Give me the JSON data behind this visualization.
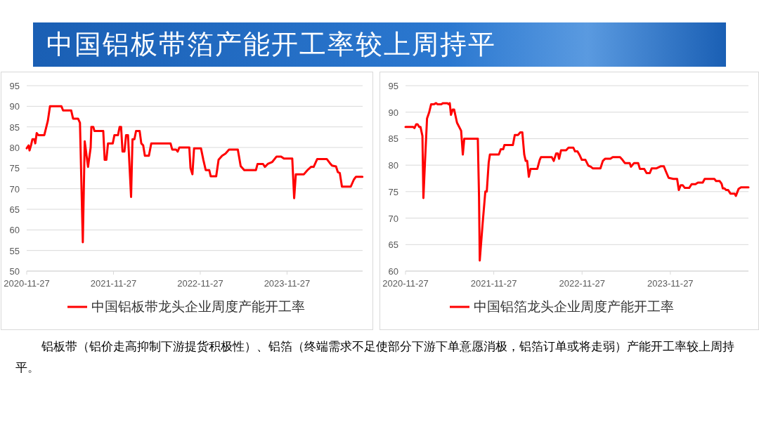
{
  "chart_data": [
    {
      "type": "line",
      "title": "中国铝板带箔产能开工率较上周持平",
      "annotations": [
        "铝板带（铝价走高抑制下游提货积极性）、铝箔（终端需求不足使部分下游下单意愿消极，铝箔订单或将走弱）产能开工率较上周持平。"
      ],
      "xlim": [
        "2020-11-27",
        "2024-10-10"
      ],
      "xticks": [
        {
          "value": "2020-11-27",
          "label": "2020-11-27"
        },
        {
          "value": "2021-11-27",
          "label": "2021-11-27"
        },
        {
          "value": "2022-11-27",
          "label": "2022-11-27"
        },
        {
          "value": "2023-11-27",
          "label": "2023-11-27"
        }
      ],
      "ylim": [
        50,
        95
      ],
      "yticks": [
        50,
        55,
        60,
        65,
        70,
        75,
        80,
        85,
        90,
        95
      ],
      "grid": "y",
      "legend": "bottom",
      "series": [
        {
          "name": "中国铝板带龙头企业周度产能开工率",
          "color": "#ff0000",
          "x": [
            "2020-11-27",
            "2020-12-05",
            "2020-12-09",
            "2020-12-15",
            "2020-12-21",
            "2020-12-29",
            "2021-01-02",
            "2021-01-08",
            "2021-01-15",
            "2021-02-09",
            "2021-02-24",
            "2021-03-05",
            "2021-04-22",
            "2021-04-29",
            "2021-06-02",
            "2021-06-10",
            "2021-07-01",
            "2021-07-09",
            "2021-07-21",
            "2021-07-29",
            "2021-08-12",
            "2021-08-23",
            "2021-08-26",
            "2021-09-03",
            "2021-09-08",
            "2021-10-15",
            "2021-10-21",
            "2021-10-28",
            "2021-11-04",
            "2021-11-24",
            "2021-12-01",
            "2021-12-16",
            "2021-12-23",
            "2021-12-29",
            "2022-01-04",
            "2022-01-12",
            "2022-01-19",
            "2022-01-27",
            "2022-02-09",
            "2022-02-15",
            "2022-02-23",
            "2022-03-02",
            "2022-03-17",
            "2022-03-24",
            "2022-04-01",
            "2022-04-08",
            "2022-04-25",
            "2022-05-05",
            "2022-07-25",
            "2022-08-01",
            "2022-08-17",
            "2022-08-24",
            "2022-08-31",
            "2022-10-12",
            "2022-10-17",
            "2022-10-25",
            "2022-11-01",
            "2022-11-30",
            "2022-12-10",
            "2022-12-20",
            "2023-01-04",
            "2023-01-10",
            "2023-02-02",
            "2023-02-12",
            "2023-02-27",
            "2023-03-13",
            "2023-03-28",
            "2023-05-04",
            "2023-05-16",
            "2023-05-31",
            "2023-07-19",
            "2023-07-26",
            "2023-08-18",
            "2023-08-26",
            "2023-09-07",
            "2023-09-26",
            "2023-10-14",
            "2023-11-02",
            "2023-11-14",
            "2023-12-19",
            "2023-12-27",
            "2024-01-03",
            "2024-02-06",
            "2024-02-21",
            "2024-03-07",
            "2024-03-18",
            "2024-04-02",
            "2024-05-12",
            "2024-05-24",
            "2024-06-03",
            "2024-06-20",
            "2024-06-28",
            "2024-07-06",
            "2024-07-15",
            "2024-08-21",
            "2024-09-03",
            "2024-09-12",
            "2024-10-09"
          ],
          "values": [
            79.8,
            80.5,
            79.3,
            80.5,
            82,
            82,
            81,
            83.5,
            83,
            83,
            86.5,
            90,
            90,
            89,
            89,
            87,
            87,
            86,
            57,
            81.5,
            75.3,
            80,
            85,
            85,
            84,
            84,
            77,
            77,
            81,
            81,
            83,
            83,
            85,
            85,
            79,
            79,
            83,
            83,
            68,
            82,
            82,
            84,
            84,
            81,
            80.5,
            78,
            78,
            81,
            81,
            79.5,
            79.5,
            79,
            80,
            80,
            75,
            73.5,
            79.8,
            79.8,
            77,
            74.5,
            74.5,
            73,
            73,
            77,
            78,
            78.5,
            79.5,
            79.5,
            75.5,
            74.5,
            74.5,
            76,
            76,
            75.3,
            76,
            76.5,
            77.8,
            77.8,
            77.3,
            77.3,
            67.7,
            73.5,
            73.5,
            74.5,
            75.3,
            75.3,
            77.2,
            77.2,
            76.3,
            75.6,
            75.4,
            74,
            73.8,
            70.5,
            70.5,
            72.2,
            72.9,
            72.9
          ]
        }
      ]
    },
    {
      "type": "line",
      "xlim": [
        "2020-11-27",
        "2024-10-15"
      ],
      "xticks": [
        {
          "value": "2020-11-27",
          "label": "2020-11-27"
        },
        {
          "value": "2021-11-27",
          "label": "2021-11-27"
        },
        {
          "value": "2022-11-27",
          "label": "2022-11-27"
        },
        {
          "value": "2023-11-27",
          "label": "2023-11-27"
        }
      ],
      "ylim": [
        60,
        95
      ],
      "yticks": [
        60,
        65,
        70,
        75,
        80,
        85,
        90,
        95
      ],
      "grid": "y",
      "legend": "bottom",
      "series": [
        {
          "name": "中国铝箔龙头企业周度产能开工率",
          "color": "#ff0000",
          "x": [
            "2020-11-27",
            "2020-12-29",
            "2021-01-03",
            "2021-01-10",
            "2021-01-16",
            "2021-01-23",
            "2021-01-28",
            "2021-02-05",
            "2021-02-09",
            "2021-02-15",
            "2021-02-24",
            "2021-03-05",
            "2021-03-13",
            "2021-03-25",
            "2021-04-02",
            "2021-04-09",
            "2021-04-24",
            "2021-05-01",
            "2021-05-19",
            "2021-05-24",
            "2021-05-29",
            "2021-06-03",
            "2021-06-10",
            "2021-06-16",
            "2021-06-28",
            "2021-07-15",
            "2021-07-22",
            "2021-07-28",
            "2021-09-22",
            "2021-09-27",
            "2021-09-30",
            "2021-10-12",
            "2021-10-23",
            "2021-10-29",
            "2021-11-06",
            "2021-11-11",
            "2021-12-18",
            "2021-12-26",
            "2022-01-05",
            "2022-01-10",
            "2022-02-14",
            "2022-02-22",
            "2022-03-07",
            "2022-03-17",
            "2022-03-25",
            "2022-04-02",
            "2022-04-08",
            "2022-04-14",
            "2022-04-21",
            "2022-04-28",
            "2022-05-26",
            "2022-06-05",
            "2022-06-10",
            "2022-07-25",
            "2022-08-02",
            "2022-08-12",
            "2022-08-19",
            "2022-08-24",
            "2022-09-01",
            "2022-09-22",
            "2022-10-02",
            "2022-10-22",
            "2022-10-29",
            "2022-11-08",
            "2022-11-18",
            "2022-11-26",
            "2022-12-11",
            "2022-12-23",
            "2023-01-02",
            "2023-01-10",
            "2023-02-11",
            "2023-02-21",
            "2023-03-02",
            "2023-03-24",
            "2023-04-03",
            "2023-05-03",
            "2023-05-13",
            "2023-05-23",
            "2023-06-12",
            "2023-06-17",
            "2023-06-30",
            "2023-07-17",
            "2023-07-24",
            "2023-08-11",
            "2023-08-21",
            "2023-09-03",
            "2023-09-11",
            "2023-10-01",
            "2023-10-19",
            "2023-10-31",
            "2023-11-07",
            "2023-11-20",
            "2023-11-30",
            "2023-12-10",
            "2023-12-25",
            "2024-01-01",
            "2024-01-09",
            "2024-01-17",
            "2024-01-26",
            "2024-02-13",
            "2024-02-23",
            "2024-03-10",
            "2024-03-20",
            "2024-04-09",
            "2024-04-17",
            "2024-05-27",
            "2024-06-03",
            "2024-06-18",
            "2024-06-26",
            "2024-07-01",
            "2024-07-08",
            "2024-07-15",
            "2024-07-23",
            "2024-08-02",
            "2024-08-19",
            "2024-08-24",
            "2024-09-04",
            "2024-09-14",
            "2024-10-15"
          ],
          "values": [
            87.2,
            87.2,
            87,
            87.7,
            87.7,
            87.2,
            87.2,
            85.5,
            73.8,
            80,
            88.8,
            90,
            91.5,
            91.5,
            91.7,
            91.5,
            91.5,
            91.7,
            91.7,
            91.5,
            91.7,
            89.5,
            90.5,
            90.5,
            88,
            86.5,
            82,
            85,
            85,
            74,
            62,
            69,
            75,
            75,
            80.5,
            82,
            82,
            83,
            83,
            83.8,
            83.8,
            85.7,
            85.7,
            86.2,
            86.2,
            82,
            80.8,
            80.8,
            77.8,
            79.3,
            79.3,
            81,
            81.5,
            81.5,
            80.8,
            82.2,
            82.2,
            81.2,
            82.8,
            82.8,
            83.3,
            83.3,
            82.6,
            82.6,
            81.8,
            81,
            81,
            79.9,
            79.7,
            79.4,
            79.4,
            80.8,
            81.2,
            81.2,
            81.5,
            81.5,
            81,
            80.4,
            80.4,
            79.7,
            80.4,
            80.4,
            79.3,
            79.3,
            78.5,
            78.5,
            79.4,
            79.4,
            79.8,
            79.8,
            79,
            77.6,
            77.5,
            77.4,
            77.4,
            75.3,
            76.2,
            76.2,
            75.7,
            75.7,
            76.4,
            76.4,
            76.7,
            76.7,
            77.4,
            77.4,
            77,
            77,
            76.5,
            75.6,
            75.6,
            75.3,
            75.3,
            74.6,
            74.6,
            74.2,
            75.5,
            75.8,
            75.8
          ]
        }
      ]
    }
  ]
}
